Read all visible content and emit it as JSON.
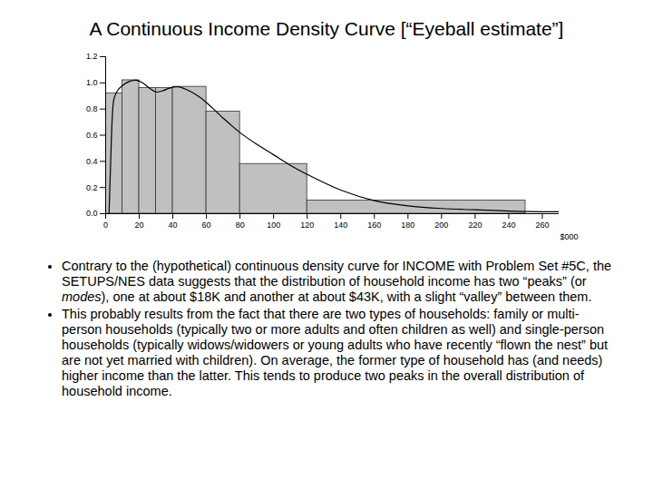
{
  "title": "A Continuous Income Density Curve [“Eyeball estimate”]",
  "chart_data": {
    "type": "histogram",
    "bins": [
      0,
      10,
      20,
      30,
      40,
      60,
      80,
      120,
      250
    ],
    "values": [
      0.92,
      1.02,
      0.96,
      0.96,
      0.97,
      0.78,
      0.38,
      0.1
    ],
    "color": "#c0c0c0",
    "curve": {
      "x": [
        2,
        3,
        4,
        5,
        7,
        10,
        14,
        18,
        22,
        26,
        30,
        34,
        38,
        43,
        48,
        55,
        60,
        70,
        80,
        90,
        100,
        110,
        120,
        140,
        160,
        180,
        200,
        220,
        240,
        260,
        270
      ],
      "y": [
        0,
        0.4,
        0.75,
        0.88,
        0.94,
        0.98,
        1.01,
        1.02,
        1.0,
        0.96,
        0.93,
        0.94,
        0.96,
        0.97,
        0.95,
        0.9,
        0.85,
        0.73,
        0.62,
        0.53,
        0.45,
        0.37,
        0.3,
        0.18,
        0.1,
        0.06,
        0.04,
        0.03,
        0.02,
        0.015,
        0.015
      ],
      "color": "#000000"
    },
    "x_label": "$000",
    "xlim": [
      0,
      270
    ],
    "xticks": [
      0,
      20,
      40,
      60,
      80,
      100,
      120,
      140,
      160,
      180,
      200,
      220,
      240,
      260
    ],
    "ylim": [
      0,
      1.2
    ],
    "yticks": [
      {
        "value": 0,
        "label": "0.0"
      },
      {
        "value": 0.2,
        "label": "0.2"
      },
      {
        "value": 0.4,
        "label": "0.4"
      },
      {
        "value": 0.6,
        "label": "0.6"
      },
      {
        "value": 0.8,
        "label": "0.8"
      },
      {
        "value": 1.0,
        "label": "1.0"
      },
      {
        "value": 1.2,
        "label": "1.2"
      }
    ],
    "grid": false
  },
  "bullets": [
    [
      {
        "text": "Contrary to the (hypothetical) continuous density curve for INCOME with Problem Set #5C, the SETUPS/NES data suggests that the distribution of household income has two “peaks” (or "
      },
      {
        "text": "modes",
        "italic": true
      },
      {
        "text": "), one at about $18K and another at about $43K, with a slight “valley” between them."
      }
    ],
    [
      {
        "text": "This probably results from the fact that there are two types of households: family or multi-person households (typically two or more adults and often children as well) and single-person households (typically widows/widowers or young adults who have recently “flown the nest” but are not yet married with children). On average, the former type of household has (and needs) higher income than the latter. This tends to produce two peaks in the overall distribution of household income."
      }
    ]
  ]
}
